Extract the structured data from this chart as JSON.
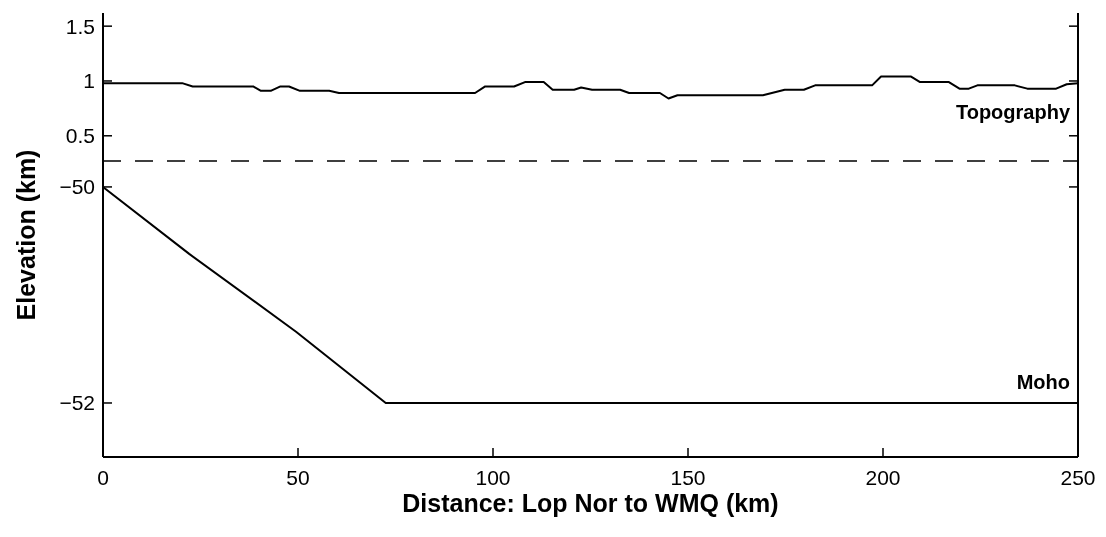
{
  "chart_data": [
    {
      "type": "line",
      "xlim": [
        0,
        250
      ],
      "ylim": [
        0.27,
        1.62
      ],
      "yticks": [
        0.5,
        1,
        1.5
      ],
      "tick_labels": "y",
      "grid": false,
      "series": [
        {
          "name": "Topography",
          "color": "#000000",
          "x": [
            0,
            20.3,
            23,
            38.5,
            40.5,
            43,
            45.5,
            47.7,
            50.5,
            58,
            60.5,
            95.4,
            98,
            105.4,
            108.2,
            113,
            115.3,
            120.8,
            122.6,
            125.4,
            132.6,
            134.9,
            142.8,
            145,
            147.3,
            169.2,
            174.8,
            179.7,
            182.6,
            197.2,
            199.5,
            207.2,
            209.5,
            216.9,
            219.6,
            222,
            224.2,
            233.8,
            237,
            244.4,
            247.1,
            250
          ],
          "values": [
            0.98,
            0.98,
            0.95,
            0.95,
            0.91,
            0.91,
            0.95,
            0.95,
            0.91,
            0.91,
            0.89,
            0.89,
            0.95,
            0.95,
            0.99,
            0.99,
            0.92,
            0.92,
            0.94,
            0.92,
            0.92,
            0.89,
            0.89,
            0.84,
            0.87,
            0.87,
            0.92,
            0.92,
            0.96,
            0.96,
            1.04,
            1.04,
            0.99,
            0.99,
            0.93,
            0.93,
            0.96,
            0.96,
            0.93,
            0.93,
            0.97,
            0.98
          ]
        }
      ]
    },
    {
      "type": "line",
      "xlabel": "Distance: Lop Nor to WMQ (km)",
      "ylabel": "Elevation (km)",
      "xlim": [
        0,
        250
      ],
      "xticks": [
        0,
        50,
        100,
        150,
        200,
        250
      ],
      "ylim": [
        -52.5,
        -49.76
      ],
      "yticks": [
        -52,
        -50
      ],
      "grid": false,
      "series": [
        {
          "name": "Moho",
          "color": "#000000",
          "x": [
            0,
            22.1,
            49.5,
            72.5,
            250
          ],
          "values": [
            -50,
            -50.62,
            -51.34,
            -52,
            -52
          ]
        }
      ]
    }
  ]
}
